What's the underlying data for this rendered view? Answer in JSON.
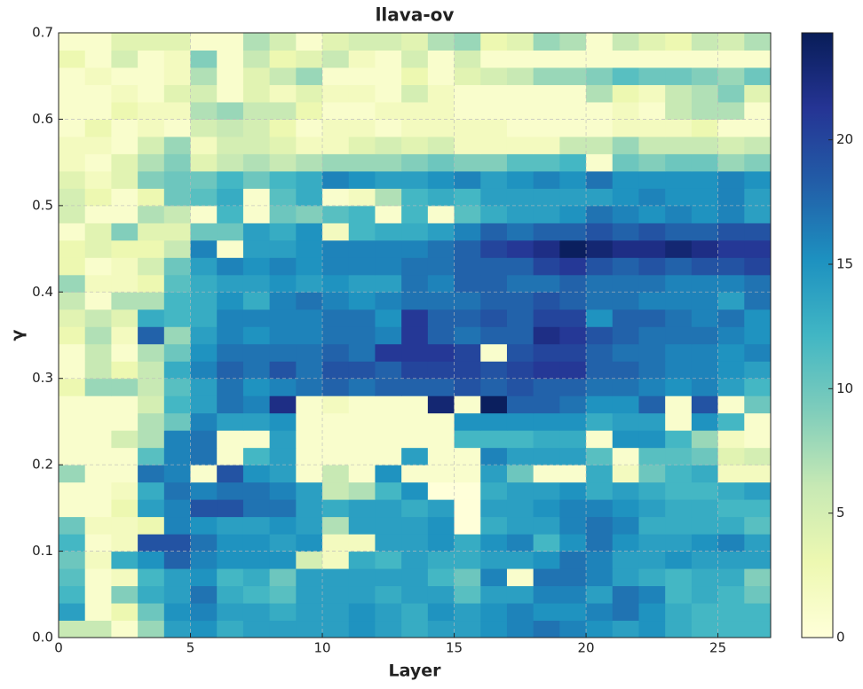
{
  "chart_data": {
    "type": "heatmap",
    "title": "llava-ov",
    "x_label": "Layer",
    "y_label": "γ",
    "colormap": "YlGnBu",
    "grid": true,
    "xlim": [
      0,
      27
    ],
    "ylim": [
      0,
      0.7
    ],
    "zlim": [
      0,
      24.3
    ],
    "xticks": [
      0,
      5,
      10,
      15,
      20,
      25
    ],
    "yticks": [
      {
        "value": 0,
        "label": "0.0"
      },
      0.1,
      0.2,
      0.3,
      0.4,
      0.5,
      0.6,
      0.7
    ],
    "cbticks": [
      0,
      5,
      10,
      15,
      20
    ],
    "z": [
      [
        6,
        6,
        1,
        8,
        14,
        15,
        13,
        14,
        14,
        14,
        14,
        15,
        14,
        13,
        14,
        14,
        15,
        16,
        17,
        16,
        15,
        14,
        15,
        13,
        12,
        12,
        12
      ],
      [
        14,
        1,
        3,
        10,
        15,
        16,
        14,
        14,
        13,
        14,
        14,
        15,
        14,
        13,
        15,
        14,
        15,
        16,
        15,
        15,
        16,
        17,
        15,
        13,
        12,
        12,
        12
      ],
      [
        12,
        1,
        9,
        13,
        14,
        17,
        13,
        12,
        11,
        14,
        14,
        14,
        13,
        14,
        14,
        11,
        14,
        14,
        16,
        16,
        14,
        17,
        16,
        12,
        13,
        12,
        10
      ],
      [
        11,
        1,
        2,
        12,
        14,
        15,
        12,
        13,
        10,
        14,
        14,
        14,
        14,
        14,
        12,
        10,
        16,
        1,
        17,
        17,
        16,
        14,
        13,
        12,
        13,
        13,
        9
      ],
      [
        10,
        2,
        13,
        15,
        18,
        16,
        15,
        15,
        15,
        5,
        2,
        13,
        12,
        14,
        13,
        13,
        14,
        14,
        15,
        17,
        16,
        14,
        14,
        15,
        14,
        14,
        14
      ],
      [
        12,
        1,
        2,
        19,
        19,
        17,
        15,
        15,
        14,
        15,
        2,
        2,
        14,
        14,
        15,
        13,
        15,
        16,
        12,
        15,
        17,
        15,
        14,
        14,
        15,
        16,
        14
      ],
      [
        10,
        2,
        2,
        3,
        16,
        15,
        14,
        14,
        15,
        14,
        7,
        14,
        14,
        14,
        15,
        0,
        13,
        14,
        14,
        16,
        17,
        16,
        13,
        13,
        13,
        13,
        11
      ],
      [
        1,
        1,
        3,
        14,
        16,
        19,
        19,
        17,
        17,
        14,
        13,
        14,
        14,
        13,
        14,
        0,
        14,
        14,
        15,
        16,
        16,
        15,
        14,
        13,
        13,
        12,
        12
      ],
      [
        1,
        1,
        2,
        13,
        17,
        16,
        17,
        17,
        16,
        14,
        6,
        7,
        12,
        15,
        0,
        0,
        13,
        14,
        14,
        15,
        13,
        14,
        13,
        12,
        12,
        13,
        14
      ],
      [
        8,
        1,
        1,
        17,
        16,
        1,
        19,
        15,
        14,
        1,
        6,
        1,
        15,
        1,
        1,
        1,
        14,
        10,
        1,
        1,
        13,
        2,
        10,
        12,
        13,
        2,
        2
      ],
      [
        1,
        1,
        1,
        11,
        16,
        17,
        1,
        12,
        14,
        1,
        1,
        1,
        1,
        14,
        1,
        1,
        16,
        14,
        14,
        14,
        11,
        1,
        11,
        11,
        10,
        4,
        5
      ],
      [
        1,
        1,
        5,
        7,
        16,
        17,
        1,
        1,
        14,
        1,
        1,
        1,
        1,
        1,
        1,
        12,
        12,
        12,
        13,
        13,
        1,
        15,
        15,
        12,
        8,
        2,
        1
      ],
      [
        1,
        1,
        1,
        7,
        10,
        16,
        14,
        14,
        15,
        1,
        1,
        1,
        1,
        1,
        1,
        15,
        15,
        15,
        15,
        15,
        13,
        14,
        14,
        1,
        15,
        12,
        1
      ],
      [
        1,
        1,
        1,
        5,
        12,
        14,
        17,
        16,
        22,
        1,
        2,
        1,
        1,
        1,
        23,
        1,
        24,
        18,
        18,
        17,
        15,
        15,
        18,
        1,
        19,
        1,
        10
      ],
      [
        3,
        8,
        8,
        6,
        11,
        14,
        17,
        15,
        16,
        17,
        18,
        17,
        18,
        18,
        18,
        19,
        18,
        19,
        18,
        18,
        17,
        17,
        16,
        15,
        16,
        14,
        12
      ],
      [
        1,
        6,
        3,
        6,
        13,
        16,
        18,
        17,
        19,
        17,
        19,
        19,
        18,
        20,
        20,
        20,
        19,
        20,
        21,
        21,
        18,
        18,
        17,
        16,
        16,
        15,
        14
      ],
      [
        1,
        6,
        1,
        7,
        10,
        15,
        17,
        17,
        17,
        17,
        18,
        17,
        21,
        21,
        21,
        20,
        1,
        19,
        20,
        20,
        18,
        17,
        17,
        16,
        16,
        15,
        16
      ],
      [
        3,
        7,
        2,
        18,
        8,
        14,
        16,
        15,
        16,
        16,
        17,
        17,
        16,
        21,
        18,
        17,
        18,
        18,
        22,
        21,
        19,
        18,
        17,
        17,
        17,
        16,
        15
      ],
      [
        4,
        6,
        4,
        13,
        12,
        13,
        16,
        16,
        16,
        16,
        17,
        17,
        15,
        21,
        18,
        18,
        19,
        18,
        20,
        20,
        15,
        18,
        18,
        17,
        16,
        17,
        15
      ],
      [
        6,
        1,
        7,
        7,
        12,
        13,
        15,
        13,
        16,
        17,
        16,
        15,
        16,
        17,
        17,
        17,
        18,
        18,
        19,
        18,
        17,
        17,
        16,
        16,
        16,
        14,
        17
      ],
      [
        8,
        2,
        2,
        3,
        11,
        13,
        14,
        14,
        15,
        14,
        15,
        14,
        14,
        17,
        16,
        18,
        18,
        17,
        17,
        18,
        17,
        17,
        17,
        16,
        16,
        16,
        17
      ],
      [
        3,
        1,
        2,
        5,
        10,
        14,
        16,
        15,
        16,
        15,
        16,
        16,
        16,
        17,
        17,
        18,
        18,
        18,
        20,
        21,
        19,
        18,
        19,
        18,
        19,
        19,
        20
      ],
      [
        3,
        4,
        3,
        3,
        6,
        16,
        1,
        14,
        14,
        15,
        16,
        16,
        16,
        16,
        17,
        18,
        20,
        21,
        22,
        24,
        23,
        22,
        22,
        23,
        22,
        21,
        21
      ],
      [
        1,
        4,
        9,
        4,
        4,
        10,
        10,
        14,
        13,
        15,
        2,
        12,
        13,
        13,
        14,
        16,
        18,
        17,
        18,
        18,
        19,
        18,
        19,
        18,
        18,
        19,
        19
      ],
      [
        5,
        1,
        1,
        7,
        6,
        1,
        12,
        1,
        10,
        9,
        11,
        12,
        1,
        12,
        1,
        11,
        13,
        14,
        14,
        15,
        17,
        16,
        15,
        16,
        15,
        16,
        14
      ],
      [
        5,
        3,
        1,
        3,
        10,
        11,
        13,
        1,
        11,
        13,
        1,
        2,
        7,
        12,
        13,
        12,
        14,
        14,
        14,
        14,
        14,
        15,
        16,
        15,
        15,
        16,
        14
      ],
      [
        4,
        2,
        4,
        9,
        10,
        10,
        12,
        10,
        12,
        13,
        16,
        15,
        14,
        14,
        15,
        16,
        14,
        15,
        16,
        15,
        17,
        15,
        15,
        15,
        15,
        16,
        15
      ],
      [
        2,
        1,
        4,
        7,
        9,
        4,
        6,
        7,
        6,
        7,
        8,
        8,
        8,
        9,
        10,
        9,
        9,
        11,
        11,
        12,
        1,
        10,
        9,
        10,
        10,
        8,
        9
      ],
      [
        2,
        2,
        1,
        5,
        8,
        2,
        5,
        5,
        4,
        2,
        2,
        4,
        5,
        4,
        5,
        2,
        2,
        2,
        2,
        6,
        6,
        8,
        6,
        6,
        6,
        5,
        6
      ],
      [
        1,
        3,
        1,
        2,
        1,
        5,
        6,
        5,
        3,
        1,
        2,
        2,
        1,
        2,
        2,
        2,
        2,
        1,
        1,
        1,
        1,
        2,
        2,
        2,
        3,
        1,
        1
      ],
      [
        1,
        1,
        3,
        2,
        2,
        7,
        8,
        6,
        6,
        3,
        1,
        1,
        2,
        2,
        2,
        1,
        1,
        1,
        1,
        1,
        1,
        2,
        1,
        6,
        7,
        7,
        1
      ],
      [
        1,
        1,
        2,
        1,
        4,
        5,
        1,
        4,
        2,
        4,
        2,
        2,
        1,
        5,
        2,
        1,
        1,
        1,
        1,
        1,
        7,
        3,
        2,
        6,
        7,
        9,
        4
      ],
      [
        1,
        2,
        1,
        1,
        2,
        7,
        1,
        4,
        6,
        8,
        1,
        1,
        1,
        3,
        1,
        4,
        5,
        6,
        8,
        8,
        9,
        11,
        10,
        10,
        9,
        8,
        10
      ],
      [
        3,
        1,
        5,
        1,
        2,
        9,
        1,
        6,
        3,
        4,
        6,
        2,
        1,
        5,
        1,
        5,
        1,
        1,
        1,
        1,
        1,
        1,
        1,
        1,
        1,
        1,
        1
      ],
      [
        1,
        1,
        4,
        4,
        4,
        1,
        1,
        7,
        5,
        1,
        4,
        5,
        5,
        4,
        7,
        8,
        3,
        4,
        8,
        7,
        1,
        6,
        4,
        3,
        6,
        5,
        7
      ]
    ]
  }
}
